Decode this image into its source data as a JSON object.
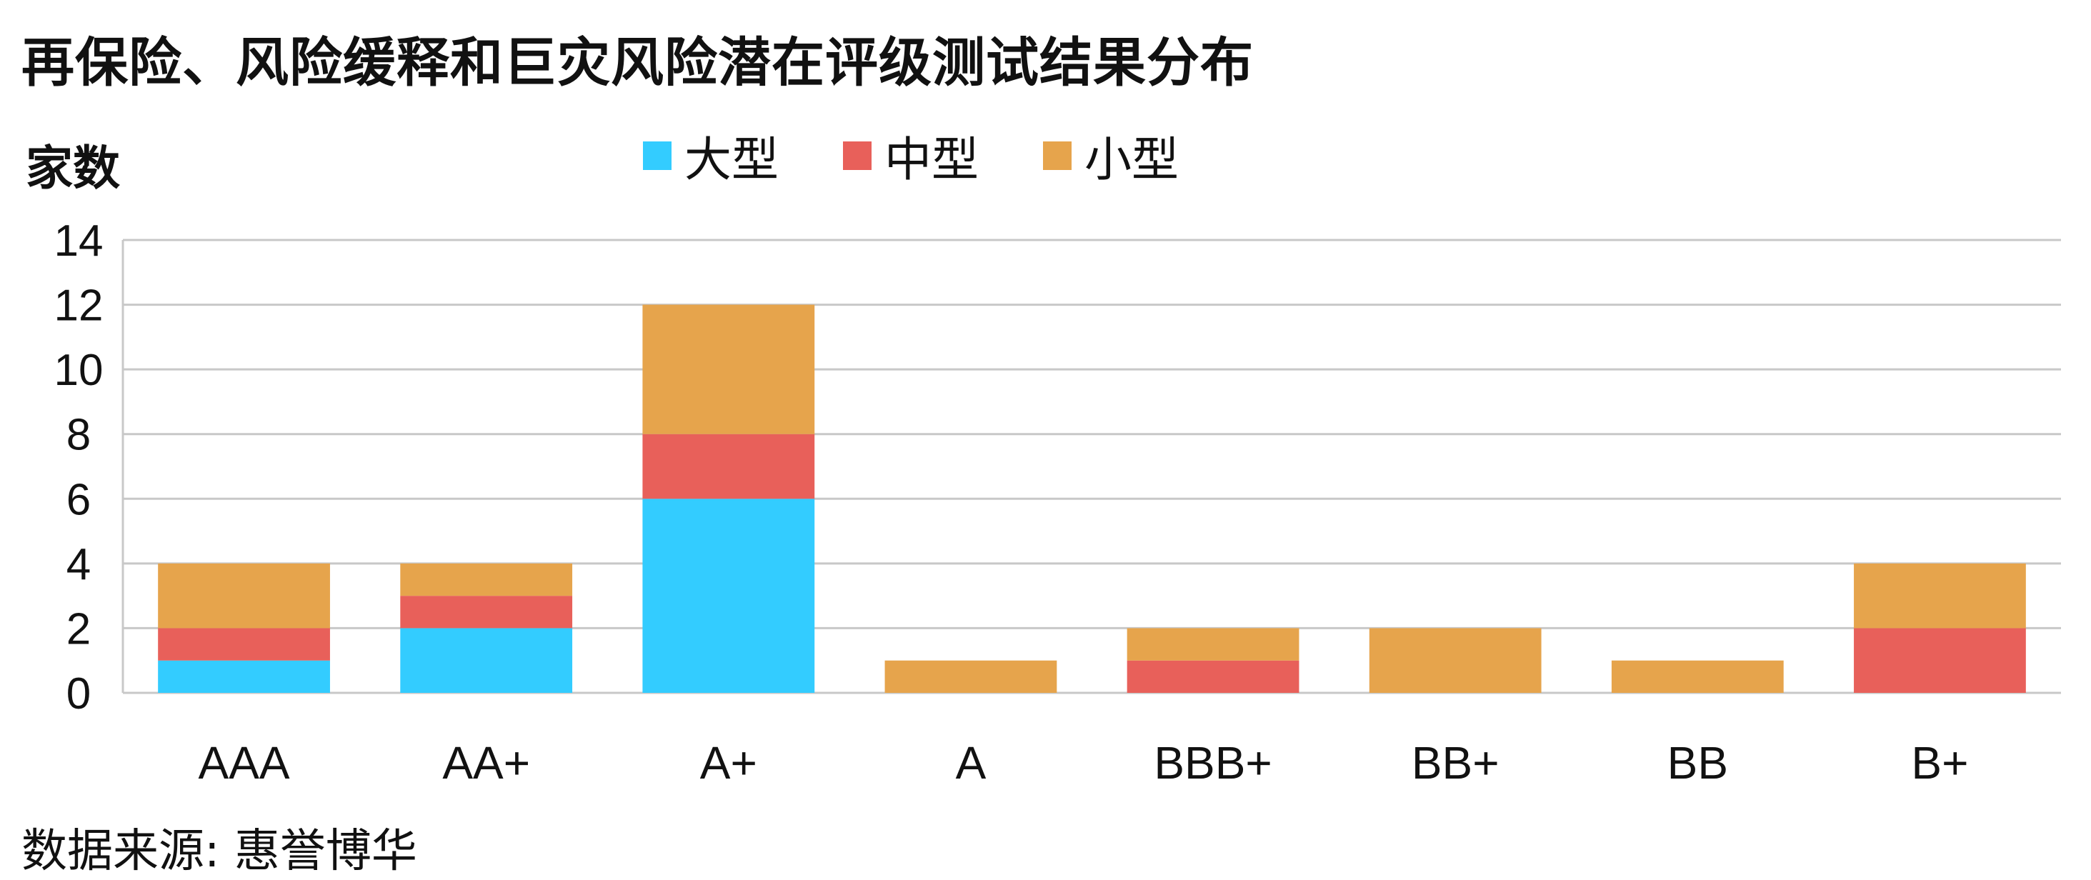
{
  "chart_data": {
    "type": "bar",
    "stacked": true,
    "title": "再保险、风险缓释和巨灾风险潜在评级测试结果分布",
    "ylabel": "家数",
    "xlabel": "",
    "ylim": [
      0,
      14
    ],
    "yticks": [
      0,
      2,
      4,
      6,
      8,
      10,
      12,
      14
    ],
    "grid": true,
    "legend_position": "top",
    "categories": [
      "AAA",
      "AA+",
      "A+",
      "A",
      "BBB+",
      "BB+",
      "BB",
      "B+"
    ],
    "series": [
      {
        "name": "大型",
        "color": "#33CCFF",
        "values": [
          1,
          2,
          6,
          0,
          0,
          0,
          0,
          0
        ]
      },
      {
        "name": "中型",
        "color": "#E8605A",
        "values": [
          1,
          1,
          2,
          0,
          1,
          0,
          0,
          2
        ]
      },
      {
        "name": "小型",
        "color": "#E6A44C",
        "values": [
          2,
          1,
          4,
          1,
          1,
          2,
          1,
          2
        ]
      }
    ]
  },
  "source": "数据来源: 惠誉博华"
}
